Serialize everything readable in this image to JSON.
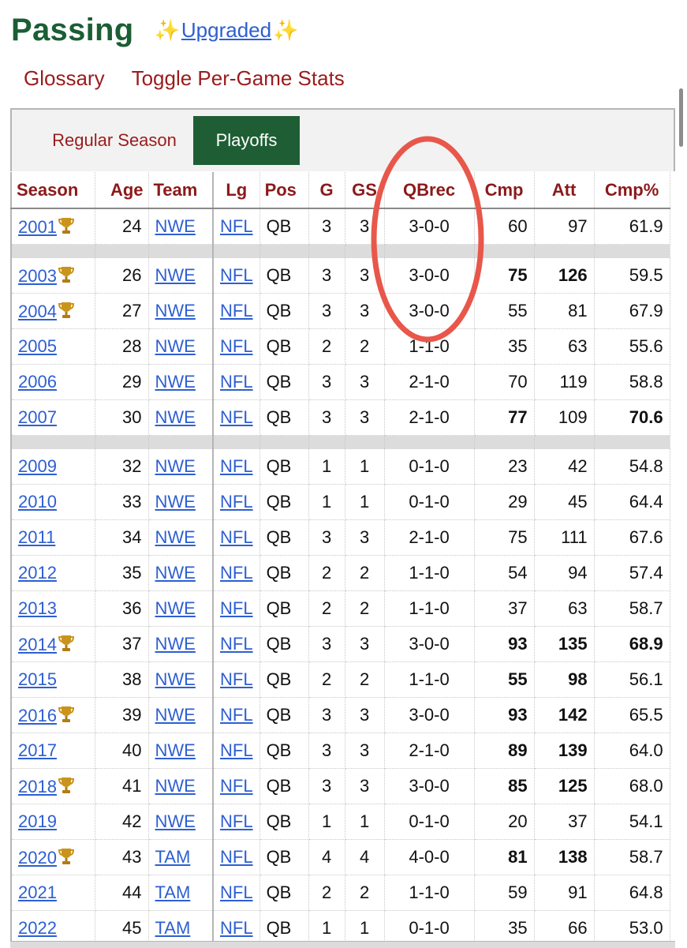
{
  "header": {
    "title": "Passing",
    "sparkle_left": "✨",
    "upgraded_label": "Upgraded",
    "sparkle_right": "✨"
  },
  "links": {
    "glossary": "Glossary",
    "toggle": "Toggle Per-Game Stats"
  },
  "tabs": {
    "regular": "Regular Season",
    "playoffs": "Playoffs",
    "active": "Playoffs"
  },
  "columns": {
    "season": "Season",
    "age": "Age",
    "team": "Team",
    "lg": "Lg",
    "pos": "Pos",
    "g": "G",
    "gs": "GS",
    "qbrec": "QBrec",
    "cmp": "Cmp",
    "att": "Att",
    "cmp_pct": "Cmp%"
  },
  "rows": [
    {
      "season": "2001",
      "trophy": true,
      "age": "24",
      "team": "NWE",
      "lg": "NFL",
      "pos": "QB",
      "g": "3",
      "gs": "3",
      "qbrec": "3-0-0",
      "cmp": "60",
      "att": "97",
      "cmp_pct": "61.9",
      "bold": []
    },
    {
      "gap": true
    },
    {
      "season": "2003",
      "trophy": true,
      "age": "26",
      "team": "NWE",
      "lg": "NFL",
      "pos": "QB",
      "g": "3",
      "gs": "3",
      "qbrec": "3-0-0",
      "cmp": "75",
      "att": "126",
      "cmp_pct": "59.5",
      "bold": [
        "cmp",
        "att"
      ]
    },
    {
      "season": "2004",
      "trophy": true,
      "age": "27",
      "team": "NWE",
      "lg": "NFL",
      "pos": "QB",
      "g": "3",
      "gs": "3",
      "qbrec": "3-0-0",
      "cmp": "55",
      "att": "81",
      "cmp_pct": "67.9",
      "bold": []
    },
    {
      "season": "2005",
      "trophy": false,
      "age": "28",
      "team": "NWE",
      "lg": "NFL",
      "pos": "QB",
      "g": "2",
      "gs": "2",
      "qbrec": "1-1-0",
      "cmp": "35",
      "att": "63",
      "cmp_pct": "55.6",
      "bold": []
    },
    {
      "season": "2006",
      "trophy": false,
      "age": "29",
      "team": "NWE",
      "lg": "NFL",
      "pos": "QB",
      "g": "3",
      "gs": "3",
      "qbrec": "2-1-0",
      "cmp": "70",
      "att": "119",
      "cmp_pct": "58.8",
      "bold": []
    },
    {
      "season": "2007",
      "trophy": false,
      "age": "30",
      "team": "NWE",
      "lg": "NFL",
      "pos": "QB",
      "g": "3",
      "gs": "3",
      "qbrec": "2-1-0",
      "cmp": "77",
      "att": "109",
      "cmp_pct": "70.6",
      "bold": [
        "cmp",
        "cmp_pct"
      ]
    },
    {
      "gap": true
    },
    {
      "season": "2009",
      "trophy": false,
      "age": "32",
      "team": "NWE",
      "lg": "NFL",
      "pos": "QB",
      "g": "1",
      "gs": "1",
      "qbrec": "0-1-0",
      "cmp": "23",
      "att": "42",
      "cmp_pct": "54.8",
      "bold": []
    },
    {
      "season": "2010",
      "trophy": false,
      "age": "33",
      "team": "NWE",
      "lg": "NFL",
      "pos": "QB",
      "g": "1",
      "gs": "1",
      "qbrec": "0-1-0",
      "cmp": "29",
      "att": "45",
      "cmp_pct": "64.4",
      "bold": []
    },
    {
      "season": "2011",
      "trophy": false,
      "age": "34",
      "team": "NWE",
      "lg": "NFL",
      "pos": "QB",
      "g": "3",
      "gs": "3",
      "qbrec": "2-1-0",
      "cmp": "75",
      "att": "111",
      "cmp_pct": "67.6",
      "bold": []
    },
    {
      "season": "2012",
      "trophy": false,
      "age": "35",
      "team": "NWE",
      "lg": "NFL",
      "pos": "QB",
      "g": "2",
      "gs": "2",
      "qbrec": "1-1-0",
      "cmp": "54",
      "att": "94",
      "cmp_pct": "57.4",
      "bold": []
    },
    {
      "season": "2013",
      "trophy": false,
      "age": "36",
      "team": "NWE",
      "lg": "NFL",
      "pos": "QB",
      "g": "2",
      "gs": "2",
      "qbrec": "1-1-0",
      "cmp": "37",
      "att": "63",
      "cmp_pct": "58.7",
      "bold": []
    },
    {
      "season": "2014",
      "trophy": true,
      "age": "37",
      "team": "NWE",
      "lg": "NFL",
      "pos": "QB",
      "g": "3",
      "gs": "3",
      "qbrec": "3-0-0",
      "cmp": "93",
      "att": "135",
      "cmp_pct": "68.9",
      "bold": [
        "cmp",
        "att",
        "cmp_pct"
      ]
    },
    {
      "season": "2015",
      "trophy": false,
      "age": "38",
      "team": "NWE",
      "lg": "NFL",
      "pos": "QB",
      "g": "2",
      "gs": "2",
      "qbrec": "1-1-0",
      "cmp": "55",
      "att": "98",
      "cmp_pct": "56.1",
      "bold": [
        "cmp",
        "att"
      ]
    },
    {
      "season": "2016",
      "trophy": true,
      "age": "39",
      "team": "NWE",
      "lg": "NFL",
      "pos": "QB",
      "g": "3",
      "gs": "3",
      "qbrec": "3-0-0",
      "cmp": "93",
      "att": "142",
      "cmp_pct": "65.5",
      "bold": [
        "cmp",
        "att"
      ]
    },
    {
      "season": "2017",
      "trophy": false,
      "age": "40",
      "team": "NWE",
      "lg": "NFL",
      "pos": "QB",
      "g": "3",
      "gs": "3",
      "qbrec": "2-1-0",
      "cmp": "89",
      "att": "139",
      "cmp_pct": "64.0",
      "bold": [
        "cmp",
        "att"
      ]
    },
    {
      "season": "2018",
      "trophy": true,
      "age": "41",
      "team": "NWE",
      "lg": "NFL",
      "pos": "QB",
      "g": "3",
      "gs": "3",
      "qbrec": "3-0-0",
      "cmp": "85",
      "att": "125",
      "cmp_pct": "68.0",
      "bold": [
        "cmp",
        "att"
      ]
    },
    {
      "season": "2019",
      "trophy": false,
      "age": "42",
      "team": "NWE",
      "lg": "NFL",
      "pos": "QB",
      "g": "1",
      "gs": "1",
      "qbrec": "0-1-0",
      "cmp": "20",
      "att": "37",
      "cmp_pct": "54.1",
      "bold": []
    },
    {
      "season": "2020",
      "trophy": true,
      "age": "43",
      "team": "TAM",
      "lg": "NFL",
      "pos": "QB",
      "g": "4",
      "gs": "4",
      "qbrec": "4-0-0",
      "cmp": "81",
      "att": "138",
      "cmp_pct": "58.7",
      "bold": [
        "cmp",
        "att"
      ]
    },
    {
      "season": "2021",
      "trophy": false,
      "age": "44",
      "team": "TAM",
      "lg": "NFL",
      "pos": "QB",
      "g": "2",
      "gs": "2",
      "qbrec": "1-1-0",
      "cmp": "59",
      "att": "91",
      "cmp_pct": "64.8",
      "bold": []
    },
    {
      "season": "2022",
      "trophy": false,
      "age": "45",
      "team": "TAM",
      "lg": "NFL",
      "pos": "QB",
      "g": "1",
      "gs": "1",
      "qbrec": "0-1-0",
      "cmp": "35",
      "att": "66",
      "cmp_pct": "53.0",
      "bold": []
    }
  ],
  "annotation": {
    "shape": "ellipse",
    "color": "#e8574a"
  },
  "colors": {
    "title_green": "#1b5e34",
    "link_red": "#9a1c1c",
    "link_blue": "#2d5fd1",
    "tab_active": "#1f5e34"
  }
}
